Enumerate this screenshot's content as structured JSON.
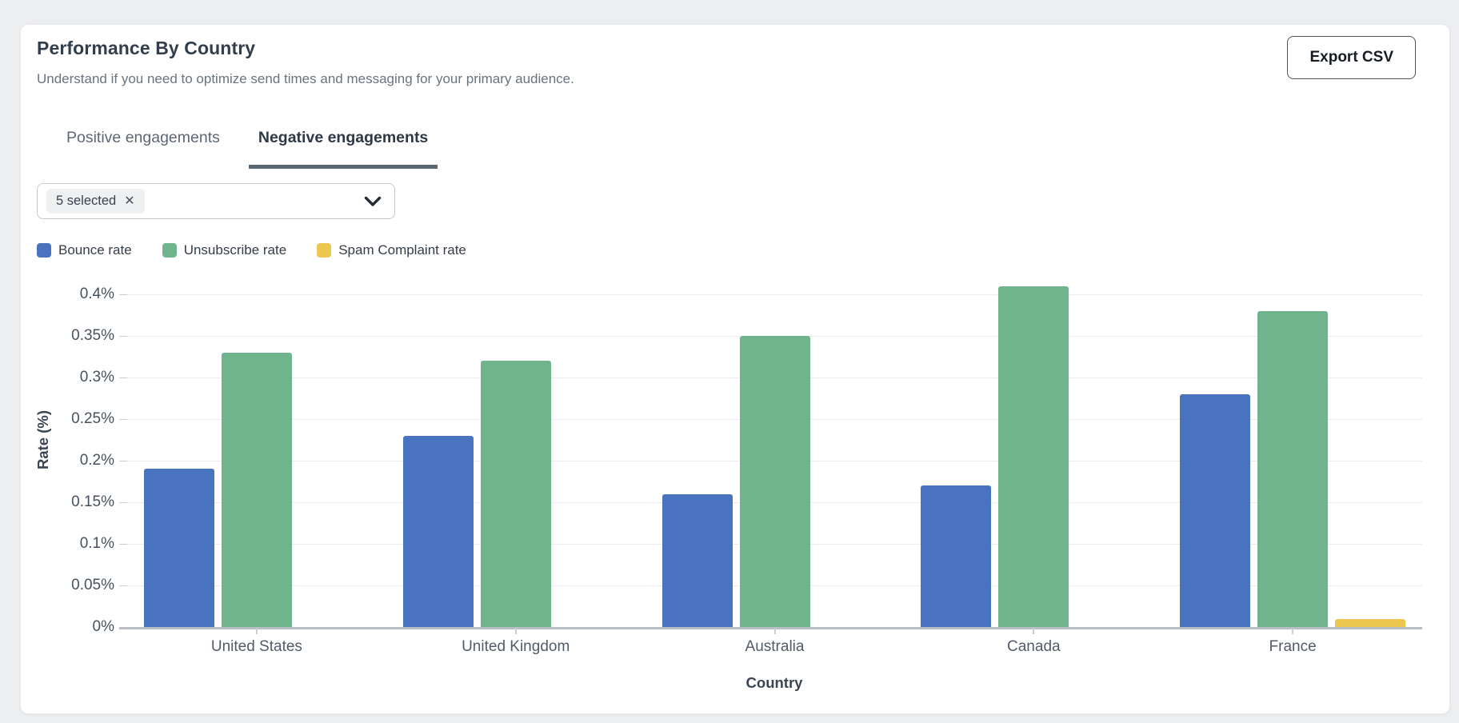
{
  "card": {
    "title": "Performance By Country",
    "subtitle": "Understand if you need to optimize send times and messaging for your primary audience.",
    "export_button": "Export CSV"
  },
  "tabs": [
    {
      "label": "Positive engagements",
      "active": false
    },
    {
      "label": "Negative engagements",
      "active": true
    }
  ],
  "filter": {
    "chip_label": "5 selected",
    "remove_icon": "✕",
    "chevron_icon": "chevron-down"
  },
  "legend": [
    {
      "label": "Bounce rate",
      "color": "#4973be"
    },
    {
      "label": "Unsubscribe rate",
      "color": "#6fb48c"
    },
    {
      "label": "Spam Complaint rate",
      "color": "#ecc851"
    }
  ],
  "chart_data": {
    "type": "bar",
    "categories": [
      "United States",
      "United Kingdom",
      "Australia",
      "Canada",
      "France"
    ],
    "series": [
      {
        "name": "Bounce rate",
        "color": "#4973be",
        "values": [
          0.19,
          0.23,
          0.16,
          0.17,
          0.28
        ]
      },
      {
        "name": "Unsubscribe rate",
        "color": "#6fb48c",
        "values": [
          0.33,
          0.32,
          0.35,
          0.41,
          0.38
        ]
      },
      {
        "name": "Spam Complaint rate",
        "color": "#ecc851",
        "values": [
          0,
          0,
          0,
          0,
          0.01
        ]
      }
    ],
    "title": "Performance By Country — Negative engagements",
    "xlabel": "Country",
    "ylabel": "Rate (%)",
    "ylim": [
      0,
      0.45
    ],
    "yticks": [
      0,
      0.05,
      0.1,
      0.15,
      0.2,
      0.25,
      0.3,
      0.35,
      0.4
    ],
    "ytick_labels": [
      "0%",
      "0.05%",
      "0.1%",
      "0.15%",
      "0.2%",
      "0.25%",
      "0.3%",
      "0.35%",
      "0.4%"
    ],
    "grid": true,
    "legend_position": "top-left"
  }
}
